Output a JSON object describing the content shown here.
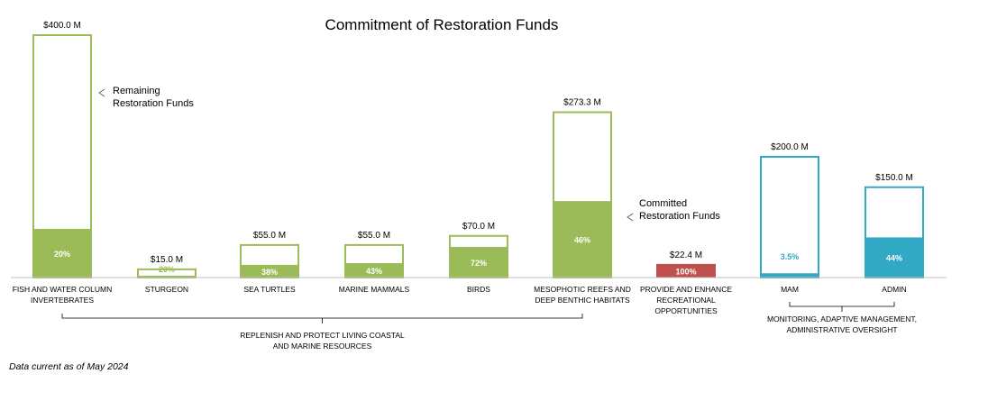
{
  "chart_data": {
    "type": "bar",
    "title": "Commitment of Restoration Funds",
    "legend": {
      "remaining": [
        "Remaining",
        "Restoration Funds"
      ],
      "committed": [
        "Committed",
        "Restoration Funds"
      ]
    },
    "categories": [
      [
        "FISH AND WATER COLUMN",
        "INVERTEBRATES"
      ],
      [
        "STURGEON"
      ],
      [
        "SEA TURTLES"
      ],
      [
        "MARINE MAMMALS"
      ],
      [
        "BIRDS"
      ],
      [
        "MESOPHOTIC REEFS AND",
        "DEEP BENTHIC HABITATS"
      ],
      [
        "PROVIDE AND ENHANCE",
        "RECREATIONAL",
        "OPPORTUNITIES"
      ],
      [
        "MAM"
      ],
      [
        "ADMIN"
      ]
    ],
    "total_labels": [
      "$400.0 M",
      "$15.0 M",
      "$55.0 M",
      "$55.0 M",
      "$70.0 M",
      "$273.3 M",
      "$22.4 M",
      "$200.0 M",
      "$150.0 M"
    ],
    "totals": [
      400.0,
      15.0,
      55.0,
      55.0,
      70.0,
      273.3,
      22.4,
      200.0,
      150.0
    ],
    "committed_percent_labels": [
      "20%",
      "20%",
      "38%",
      "43%",
      "72%",
      "46%",
      "100%",
      "3.5%",
      "44%"
    ],
    "committed_fraction": [
      0.2,
      0.2,
      0.38,
      0.43,
      0.72,
      0.46,
      1.0,
      0.035,
      0.44
    ],
    "groups": [
      {
        "label": [
          "REPLENISH AND PROTECT LIVING COASTAL",
          "AND MARINE RESOURCES"
        ],
        "from": 0,
        "to": 5
      },
      {
        "label": [
          "MONITORING, ADAPTIVE MANAGEMENT,",
          "ADMINISTRATIVE OVERSIGHT"
        ],
        "from": 7,
        "to": 8
      }
    ],
    "colors": {
      "green": "#9bbb59",
      "red": "#c0504d",
      "teal": "#31a8c4",
      "bar_colors": [
        "green",
        "green",
        "green",
        "green",
        "green",
        "green",
        "red",
        "teal",
        "teal"
      ]
    }
  },
  "footnote": "Data current as of May 2024"
}
